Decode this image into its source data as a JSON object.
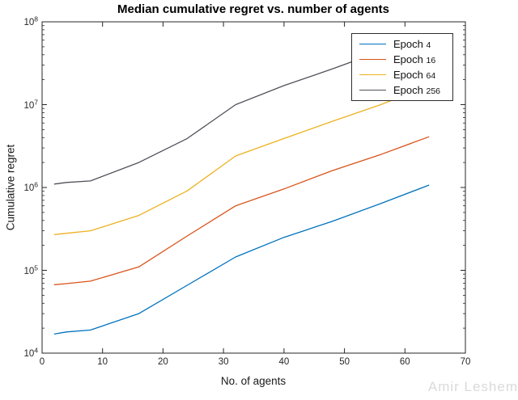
{
  "title": "Median cumulative regret vs. number of agents",
  "watermark": "Amir Leshem",
  "chart_data": {
    "type": "line",
    "title": "Median cumulative regret vs. number of agents",
    "xlabel": "No. of agents",
    "ylabel": "Cumulative regret",
    "x_range": [
      0,
      70
    ],
    "x_ticks": [
      0,
      10,
      20,
      30,
      40,
      50,
      60,
      70
    ],
    "y_scale": "log",
    "y_exponent_range": [
      4,
      8
    ],
    "y_tick_exponents": [
      4,
      5,
      6,
      7,
      8
    ],
    "grid": false,
    "legend_position": "top-right",
    "axis_color": "#262626",
    "x": [
      2,
      4,
      8,
      16,
      24,
      32,
      40,
      48,
      56,
      64
    ],
    "series": [
      {
        "name": "Epoch 4",
        "color": "#0072BD",
        "values": [
          17000,
          18000,
          19000,
          30000,
          66000,
          145000,
          250000,
          390000,
          640000,
          1070000
        ]
      },
      {
        "name": "Epoch 16",
        "color": "#D95319",
        "values": [
          67000,
          69000,
          74000,
          110000,
          260000,
          600000,
          960000,
          1600000,
          2500000,
          4100000
        ]
      },
      {
        "name": "Epoch 64",
        "color": "#EDB120",
        "values": [
          270000,
          280000,
          300000,
          460000,
          910000,
          2400000,
          3900000,
          6300000,
          10000000,
          17000000
        ]
      },
      {
        "name": "Epoch 256",
        "color": "#524F59",
        "values": [
          1100000,
          1150000,
          1200000,
          2000000,
          3900000,
          10000000,
          17000000,
          27000000,
          44000000,
          71000000
        ]
      }
    ]
  }
}
